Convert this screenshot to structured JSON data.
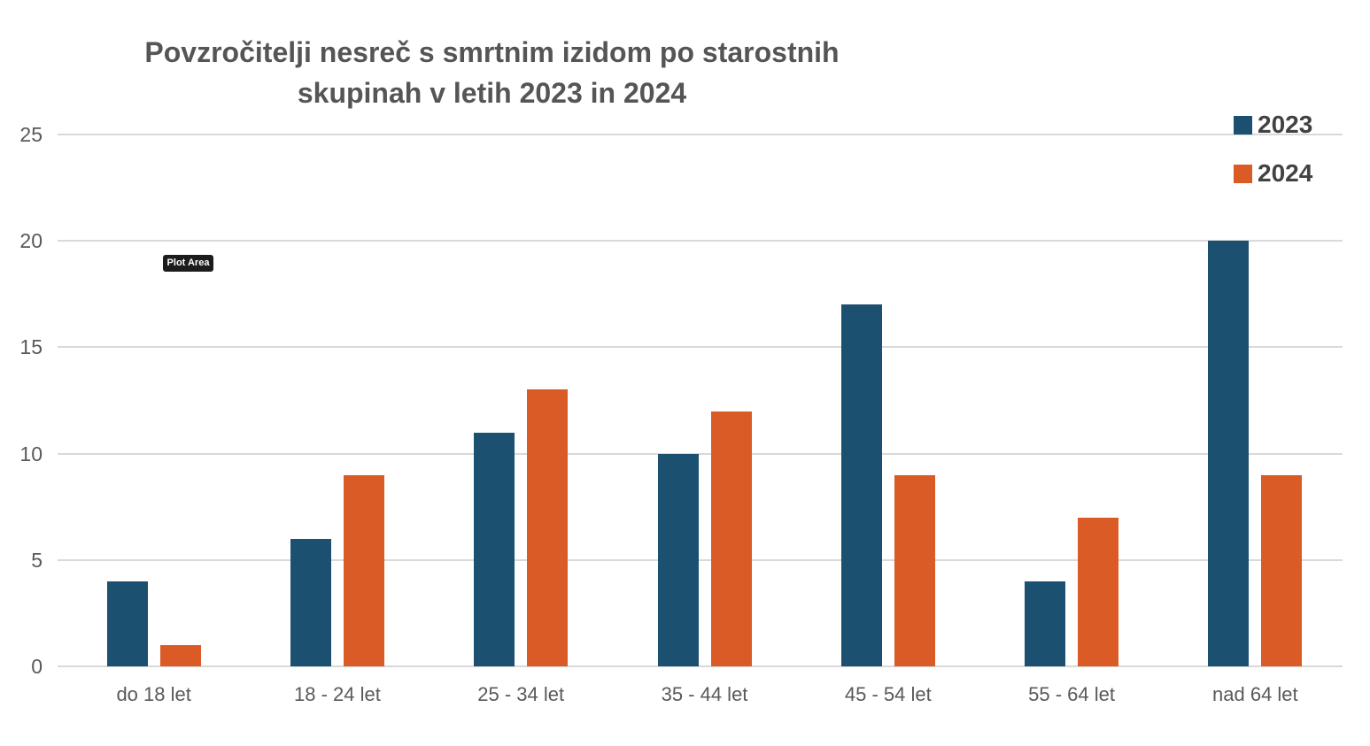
{
  "title": {
    "line1": "Povzročitelji nesreč s smrtnim izidom po starostnih",
    "line2": "skupinah v letih 2023 in 2024"
  },
  "tooltip": {
    "label": "Plot Area"
  },
  "chart_data": {
    "type": "bar",
    "title": "Povzročitelji nesreč s smrtnim izidom po starostnih skupinah v letih 2023 in 2024",
    "categories": [
      "do 18 let",
      "18 - 24 let",
      "25 - 34 let",
      "35 - 44 let",
      "45 - 54 let",
      "55 - 64 let",
      "nad 64 let"
    ],
    "series": [
      {
        "name": "2023",
        "color": "#1B5070",
        "values": [
          4,
          6,
          11,
          10,
          17,
          4,
          20
        ]
      },
      {
        "name": "2024",
        "color": "#DB5B26",
        "values": [
          1,
          9,
          13,
          12,
          9,
          7,
          9
        ]
      }
    ],
    "xlabel": "",
    "ylabel": "",
    "ylim": [
      0,
      25
    ],
    "yticks": [
      0,
      5,
      10,
      15,
      20,
      25
    ],
    "grid": true,
    "gridline_color": "#D9D9D9",
    "axis_text_color": "#595959",
    "title_color": "#555555",
    "legend_position": "top-right",
    "legend_text_color": "#424242",
    "background": "#FFFFFF"
  }
}
